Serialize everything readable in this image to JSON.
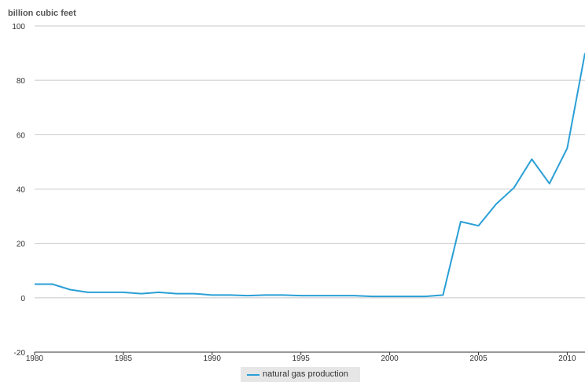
{
  "chart_data": {
    "type": "line",
    "ylabel": "billion cubic feet",
    "xlabel": "",
    "xlim": [
      1980,
      2011
    ],
    "ylim": [
      -20,
      100
    ],
    "yticks": [
      -20,
      0,
      20,
      40,
      60,
      80,
      100
    ],
    "xticks": [
      1980,
      1985,
      1990,
      1995,
      2000,
      2005,
      2010
    ],
    "grid": true,
    "legend_position": "bottom-center",
    "series": [
      {
        "name": "natural gas production",
        "color": "#2a9fd6",
        "x": [
          1980,
          1981,
          1982,
          1983,
          1984,
          1985,
          1986,
          1987,
          1988,
          1989,
          1990,
          1991,
          1992,
          1993,
          1994,
          1995,
          1996,
          1997,
          1998,
          1999,
          2000,
          2001,
          2002,
          2003,
          2004,
          2005,
          2006,
          2007,
          2008,
          2009,
          2010,
          2011
        ],
        "values": [
          5,
          5,
          3,
          2,
          2,
          2,
          1.5,
          2,
          1.5,
          1.5,
          1,
          1,
          0.8,
          1,
          1,
          0.8,
          0.8,
          0.8,
          0.8,
          0.5,
          0.5,
          0.5,
          0.5,
          1,
          28,
          26.5,
          34.5,
          40.5,
          51,
          42,
          55,
          90
        ]
      }
    ]
  }
}
